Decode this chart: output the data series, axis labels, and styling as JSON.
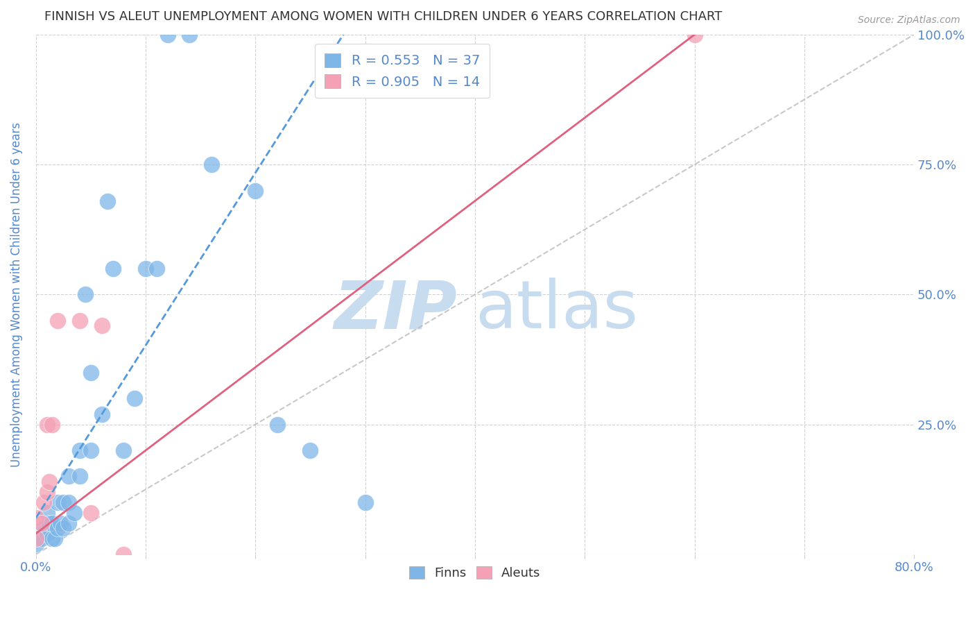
{
  "title": "FINNISH VS ALEUT UNEMPLOYMENT AMONG WOMEN WITH CHILDREN UNDER 6 YEARS CORRELATION CHART",
  "source": "Source: ZipAtlas.com",
  "ylabel": "Unemployment Among Women with Children Under 6 years",
  "xlabel": "",
  "xlim": [
    0,
    0.8
  ],
  "ylim": [
    0,
    1.0
  ],
  "xticks": [
    0.0,
    0.1,
    0.2,
    0.3,
    0.4,
    0.5,
    0.6,
    0.7,
    0.8
  ],
  "yticks": [
    0.0,
    0.25,
    0.5,
    0.75,
    1.0
  ],
  "yticklabels_right": [
    "",
    "25.0%",
    "50.0%",
    "75.0%",
    "100.0%"
  ],
  "legend_r_finnish": "R = 0.553",
  "legend_n_finnish": "N = 37",
  "legend_r_aleut": "R = 0.905",
  "legend_n_aleut": "N = 14",
  "finn_color": "#7EB6E8",
  "aleut_color": "#F4A0B5",
  "finn_line_color": "#5599DD",
  "aleut_line_color": "#E06080",
  "reference_line_color": "#BBBBBB",
  "title_color": "#333333",
  "axis_label_color": "#5588CC",
  "tick_color": "#5588CC",
  "watermark_zip_color": "#C8DCF0",
  "watermark_atlas_color": "#C8DCF0",
  "background_color": "#FFFFFF",
  "finns_x": [
    0.0,
    0.005,
    0.007,
    0.01,
    0.01,
    0.012,
    0.015,
    0.015,
    0.017,
    0.02,
    0.02,
    0.022,
    0.025,
    0.025,
    0.03,
    0.03,
    0.03,
    0.035,
    0.04,
    0.04,
    0.045,
    0.05,
    0.05,
    0.06,
    0.065,
    0.07,
    0.08,
    0.09,
    0.1,
    0.11,
    0.12,
    0.14,
    0.16,
    0.2,
    0.22,
    0.25,
    0.3
  ],
  "finns_y": [
    0.02,
    0.03,
    0.05,
    0.04,
    0.08,
    0.06,
    0.03,
    0.06,
    0.03,
    0.05,
    0.1,
    0.06,
    0.05,
    0.1,
    0.06,
    0.1,
    0.15,
    0.08,
    0.15,
    0.2,
    0.5,
    0.35,
    0.2,
    0.27,
    0.68,
    0.55,
    0.2,
    0.3,
    0.55,
    0.55,
    1.0,
    1.0,
    0.75,
    0.7,
    0.25,
    0.2,
    0.1
  ],
  "aleuts_x": [
    0.0,
    0.0,
    0.005,
    0.007,
    0.01,
    0.01,
    0.012,
    0.015,
    0.02,
    0.04,
    0.05,
    0.06,
    0.08,
    0.6
  ],
  "aleuts_y": [
    0.03,
    0.07,
    0.06,
    0.1,
    0.12,
    0.25,
    0.14,
    0.25,
    0.45,
    0.45,
    0.08,
    0.44,
    0.0,
    1.0
  ],
  "finn_line_x": [
    0.0,
    0.28
  ],
  "finn_line_y": [
    0.07,
    1.0
  ],
  "aleut_line_x": [
    0.0,
    0.6
  ],
  "aleut_line_y": [
    0.04,
    1.0
  ],
  "ref_line_x": [
    0.0,
    0.8
  ],
  "ref_line_y": [
    0.0,
    1.0
  ]
}
